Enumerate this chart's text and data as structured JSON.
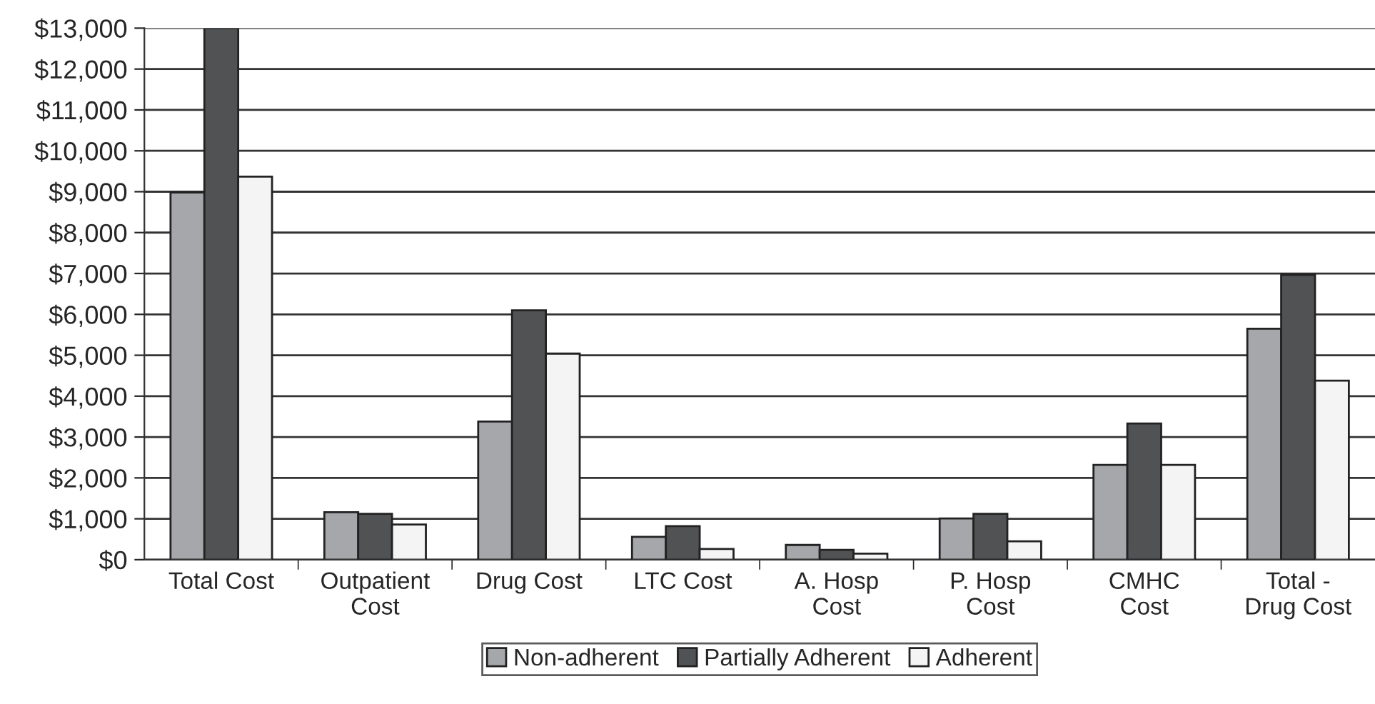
{
  "chart_data": {
    "type": "bar",
    "categories": [
      "Total Cost",
      "Outpatient\nCost",
      "Drug Cost",
      "LTC Cost",
      "A. Hosp\nCost",
      "P. Hosp\nCost",
      "CMHC\nCost",
      "Total -\nDrug Cost"
    ],
    "series": [
      {
        "name": "Non-adherent",
        "color": "#a6a7ab",
        "values": [
          8980,
          1160,
          3380,
          560,
          360,
          1010,
          2320,
          5650
        ]
      },
      {
        "name": "Partially Adherent",
        "color": "#515254",
        "values": [
          13000,
          1120,
          6100,
          820,
          240,
          1120,
          3330,
          6970
        ]
      },
      {
        "name": "Adherent",
        "color": "#f4f4f4",
        "values": [
          9370,
          860,
          5040,
          260,
          150,
          450,
          2320,
          4380
        ]
      }
    ],
    "ylim": [
      0,
      13000
    ],
    "yticks": [
      {
        "value": 0,
        "label": "$0"
      },
      {
        "value": 1000,
        "label": "$1,000"
      },
      {
        "value": 2000,
        "label": "$2,000"
      },
      {
        "value": 3000,
        "label": "$3,000"
      },
      {
        "value": 4000,
        "label": "$4,000"
      },
      {
        "value": 5000,
        "label": "$5,000"
      },
      {
        "value": 6000,
        "label": "$6,000"
      },
      {
        "value": 7000,
        "label": "$7,000"
      },
      {
        "value": 8000,
        "label": "$8,000"
      },
      {
        "value": 9000,
        "label": "$9,000"
      },
      {
        "value": 10000,
        "label": "$10,000"
      },
      {
        "value": 11000,
        "label": "$11,000"
      },
      {
        "value": 12000,
        "label": "$12,000"
      },
      {
        "value": 13000,
        "label": "$13,000"
      }
    ],
    "grid": "y",
    "legend": "bottom"
  }
}
